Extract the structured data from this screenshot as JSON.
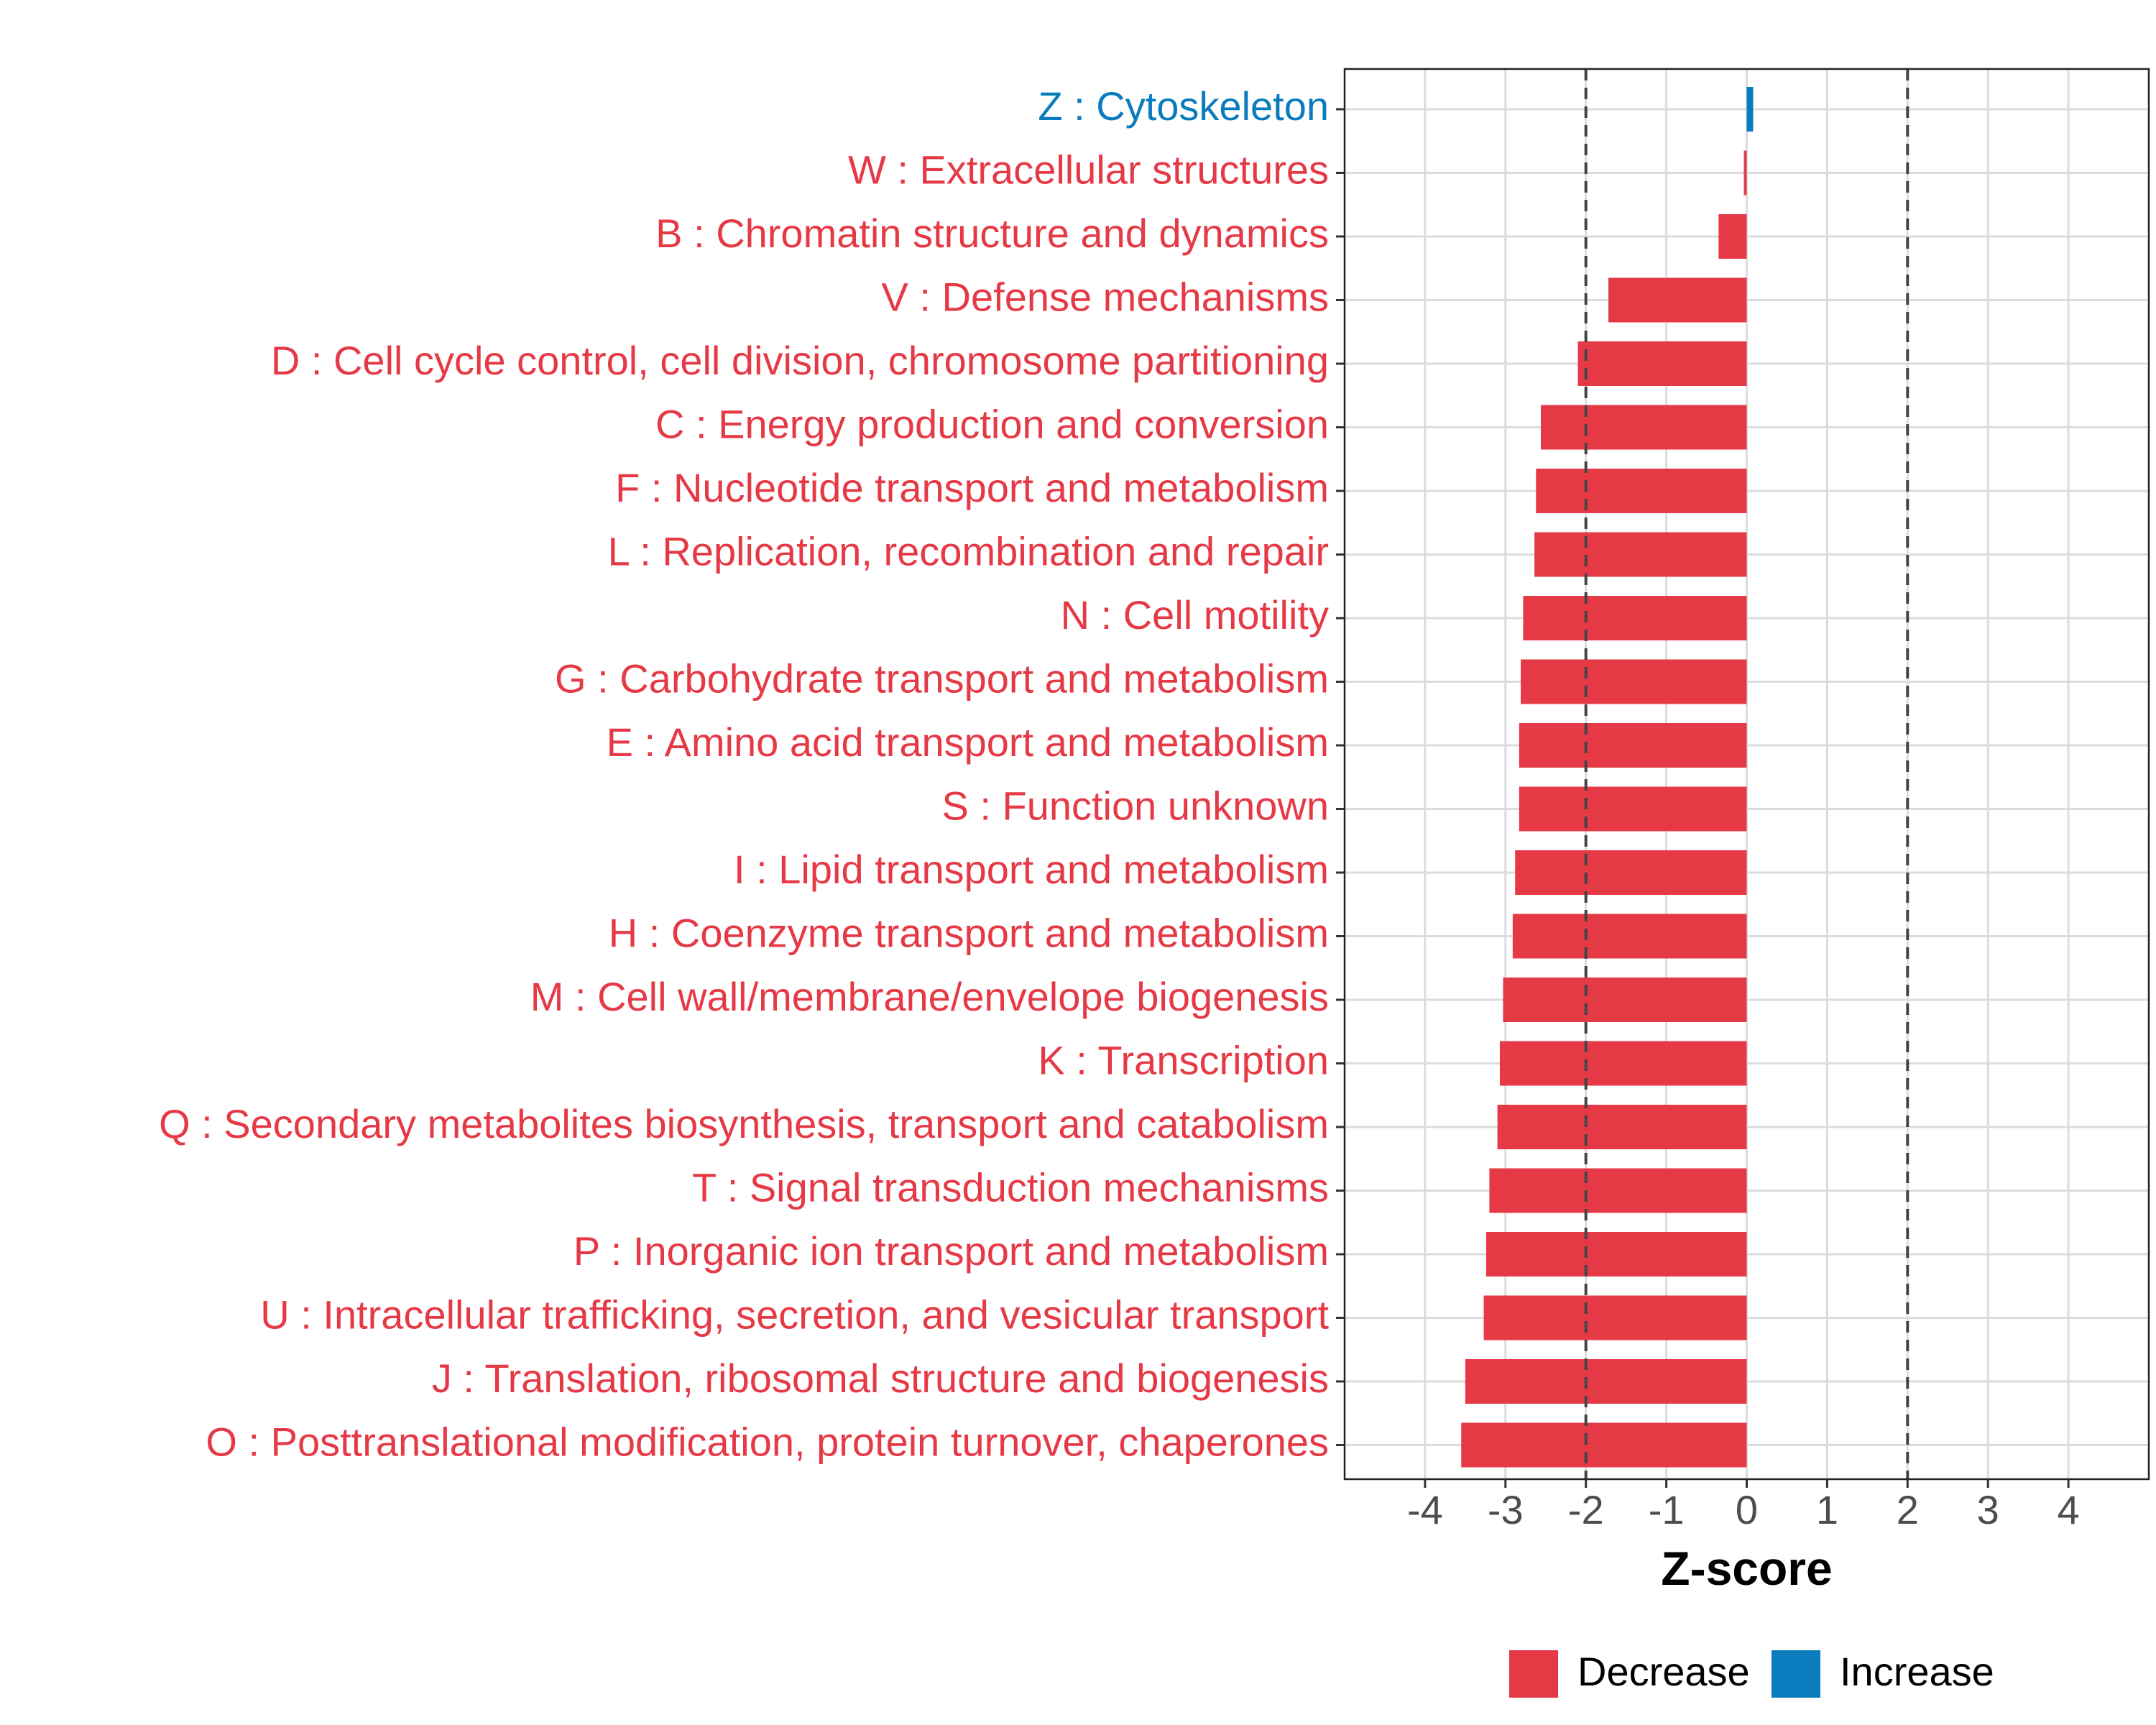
{
  "chart_data": {
    "type": "bar",
    "orientation": "horizontal",
    "title": "",
    "xlabel": "Z-score",
    "ylabel": "",
    "xlim": [
      -5,
      5
    ],
    "xticks": [
      -4,
      -3,
      -2,
      -1,
      0,
      1,
      2,
      3,
      4
    ],
    "xtick_labels": [
      "-4",
      "-3",
      "-2",
      "-1",
      "0",
      "1",
      "2",
      "3",
      "4"
    ],
    "reference_lines": [
      -2,
      2
    ],
    "grid": true,
    "legend_position": "bottom",
    "legend": [
      {
        "label": "Decrease",
        "color": "#e63946"
      },
      {
        "label": "Increase",
        "color": "#0a7bbd"
      }
    ],
    "categories": [
      "Z : Cytoskeleton",
      "W : Extracellular structures",
      "B : Chromatin structure and dynamics",
      "V : Defense mechanisms",
      "D : Cell cycle control, cell division, chromosome partitioning",
      "C : Energy production and conversion",
      "F : Nucleotide transport and metabolism",
      "L : Replication, recombination and repair",
      "N : Cell motility",
      "G : Carbohydrate transport and metabolism",
      "E : Amino acid transport and metabolism",
      "S : Function unknown",
      "I : Lipid transport and metabolism",
      "H : Coenzyme transport and metabolism",
      "M : Cell wall/membrane/envelope biogenesis",
      "K : Transcription",
      "Q : Secondary metabolites biosynthesis, transport and catabolism",
      "T : Signal transduction mechanisms",
      "P : Inorganic ion transport and metabolism",
      "U : Intracellular trafficking, secretion, and vesicular transport",
      "J : Translation, ribosomal structure and biogenesis",
      "O : Posttranslational modification, protein turnover, chaperones"
    ],
    "values": [
      0.08,
      -0.03,
      -0.35,
      -1.72,
      -2.1,
      -2.56,
      -2.62,
      -2.64,
      -2.78,
      -2.81,
      -2.83,
      -2.83,
      -2.88,
      -2.91,
      -3.03,
      -3.07,
      -3.1,
      -3.2,
      -3.24,
      -3.27,
      -3.5,
      -3.55
    ],
    "directions": [
      "Increase",
      "Decrease",
      "Decrease",
      "Decrease",
      "Decrease",
      "Decrease",
      "Decrease",
      "Decrease",
      "Decrease",
      "Decrease",
      "Decrease",
      "Decrease",
      "Decrease",
      "Decrease",
      "Decrease",
      "Decrease",
      "Decrease",
      "Decrease",
      "Decrease",
      "Decrease",
      "Decrease",
      "Decrease"
    ]
  }
}
